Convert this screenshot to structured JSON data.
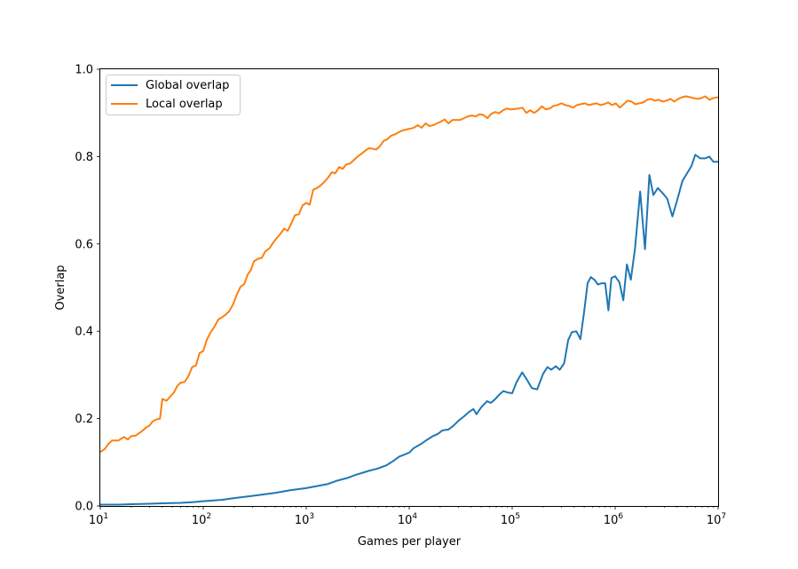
{
  "chart_data": {
    "type": "line",
    "title": "",
    "xlabel": "Games per player",
    "ylabel": "Overlap",
    "xscale": "log",
    "xlim": [
      10,
      10000000
    ],
    "ylim": [
      0.0,
      1.0
    ],
    "grid": false,
    "legend_position": "top-left",
    "x_ticks": [
      {
        "value": 10,
        "base": "10",
        "exp": "1"
      },
      {
        "value": 100,
        "base": "10",
        "exp": "2"
      },
      {
        "value": 1000,
        "base": "10",
        "exp": "3"
      },
      {
        "value": 10000,
        "base": "10",
        "exp": "4"
      },
      {
        "value": 100000,
        "base": "10",
        "exp": "5"
      },
      {
        "value": 1000000,
        "base": "10",
        "exp": "6"
      },
      {
        "value": 10000000,
        "base": "10",
        "exp": "7"
      }
    ],
    "y_ticks": [
      {
        "value": 0.0,
        "label": "0.0"
      },
      {
        "value": 0.2,
        "label": "0.2"
      },
      {
        "value": 0.4,
        "label": "0.4"
      },
      {
        "value": 0.6,
        "label": "0.6"
      },
      {
        "value": 0.8,
        "label": "0.8"
      },
      {
        "value": 1.0,
        "label": "1.0"
      }
    ],
    "series": [
      {
        "name": "Global overlap",
        "color": "#1f77b4",
        "points": [
          [
            10,
            0.003
          ],
          [
            15,
            0.003
          ],
          [
            20,
            0.004
          ],
          [
            30,
            0.005
          ],
          [
            40,
            0.006
          ],
          [
            60,
            0.007
          ],
          [
            80,
            0.009
          ],
          [
            100,
            0.011
          ],
          [
            150,
            0.014
          ],
          [
            200,
            0.018
          ],
          [
            300,
            0.023
          ],
          [
            400,
            0.027
          ],
          [
            500,
            0.03
          ],
          [
            700,
            0.036
          ],
          [
            1000,
            0.041
          ],
          [
            1300,
            0.046
          ],
          [
            1600,
            0.05
          ],
          [
            2000,
            0.058
          ],
          [
            2500,
            0.064
          ],
          [
            3000,
            0.071
          ],
          [
            4000,
            0.08
          ],
          [
            5000,
            0.086
          ],
          [
            6000,
            0.093
          ],
          [
            7000,
            0.103
          ],
          [
            8000,
            0.113
          ],
          [
            10000,
            0.122
          ],
          [
            11000,
            0.132
          ],
          [
            13000,
            0.142
          ],
          [
            15000,
            0.152
          ],
          [
            17000,
            0.16
          ],
          [
            19000,
            0.165
          ],
          [
            21000,
            0.173
          ],
          [
            24000,
            0.175
          ],
          [
            27000,
            0.184
          ],
          [
            30000,
            0.195
          ],
          [
            34000,
            0.205
          ],
          [
            38000,
            0.215
          ],
          [
            42000,
            0.222
          ],
          [
            45000,
            0.21
          ],
          [
            50000,
            0.226
          ],
          [
            57000,
            0.24
          ],
          [
            62000,
            0.236
          ],
          [
            68000,
            0.244
          ],
          [
            75000,
            0.255
          ],
          [
            82000,
            0.263
          ],
          [
            90000,
            0.26
          ],
          [
            100000,
            0.258
          ],
          [
            110000,
            0.283
          ],
          [
            125000,
            0.306
          ],
          [
            140000,
            0.288
          ],
          [
            155000,
            0.27
          ],
          [
            175000,
            0.267
          ],
          [
            200000,
            0.303
          ],
          [
            220000,
            0.318
          ],
          [
            240000,
            0.312
          ],
          [
            265000,
            0.32
          ],
          [
            290000,
            0.312
          ],
          [
            320000,
            0.327
          ],
          [
            350000,
            0.38
          ],
          [
            380000,
            0.398
          ],
          [
            420000,
            0.4
          ],
          [
            460000,
            0.382
          ],
          [
            500000,
            0.445
          ],
          [
            540000,
            0.51
          ],
          [
            580000,
            0.524
          ],
          [
            630000,
            0.518
          ],
          [
            680000,
            0.507
          ],
          [
            740000,
            0.51
          ],
          [
            800000,
            0.51
          ],
          [
            860000,
            0.448
          ],
          [
            920000,
            0.522
          ],
          [
            1000000,
            0.526
          ],
          [
            1100000,
            0.512
          ],
          [
            1200000,
            0.471
          ],
          [
            1300000,
            0.553
          ],
          [
            1420000,
            0.518
          ],
          [
            1560000,
            0.59
          ],
          [
            1750000,
            0.72
          ],
          [
            1950000,
            0.588
          ],
          [
            2150000,
            0.758
          ],
          [
            2350000,
            0.712
          ],
          [
            2600000,
            0.728
          ],
          [
            2900000,
            0.716
          ],
          [
            3200000,
            0.704
          ],
          [
            3600000,
            0.663
          ],
          [
            4000000,
            0.7
          ],
          [
            4500000,
            0.744
          ],
          [
            5000000,
            0.762
          ],
          [
            5500000,
            0.778
          ],
          [
            6000000,
            0.804
          ],
          [
            6700000,
            0.796
          ],
          [
            7500000,
            0.796
          ],
          [
            8200000,
            0.8
          ],
          [
            9000000,
            0.788
          ],
          [
            10000000,
            0.788
          ]
        ]
      },
      {
        "name": "Local overlap",
        "color": "#ff7f0e",
        "points": [
          [
            10,
            0.124
          ],
          [
            11,
            0.13
          ],
          [
            12,
            0.142
          ],
          [
            13,
            0.15
          ],
          [
            15,
            0.15
          ],
          [
            17,
            0.158
          ],
          [
            18.5,
            0.152
          ],
          [
            20,
            0.16
          ],
          [
            22,
            0.161
          ],
          [
            25,
            0.17
          ],
          [
            28,
            0.18
          ],
          [
            30,
            0.184
          ],
          [
            32,
            0.193
          ],
          [
            35,
            0.198
          ],
          [
            38,
            0.2
          ],
          [
            40,
            0.245
          ],
          [
            44,
            0.241
          ],
          [
            48,
            0.251
          ],
          [
            52,
            0.26
          ],
          [
            56,
            0.275
          ],
          [
            60,
            0.282
          ],
          [
            66,
            0.284
          ],
          [
            72,
            0.298
          ],
          [
            78,
            0.318
          ],
          [
            85,
            0.322
          ],
          [
            92,
            0.35
          ],
          [
            100,
            0.355
          ],
          [
            108,
            0.38
          ],
          [
            118,
            0.398
          ],
          [
            128,
            0.41
          ],
          [
            140,
            0.427
          ],
          [
            152,
            0.432
          ],
          [
            165,
            0.438
          ],
          [
            180,
            0.447
          ],
          [
            195,
            0.462
          ],
          [
            210,
            0.482
          ],
          [
            230,
            0.502
          ],
          [
            250,
            0.508
          ],
          [
            270,
            0.53
          ],
          [
            290,
            0.54
          ],
          [
            310,
            0.56
          ],
          [
            340,
            0.566
          ],
          [
            370,
            0.568
          ],
          [
            400,
            0.583
          ],
          [
            440,
            0.59
          ],
          [
            480,
            0.604
          ],
          [
            520,
            0.614
          ],
          [
            560,
            0.623
          ],
          [
            610,
            0.635
          ],
          [
            660,
            0.63
          ],
          [
            720,
            0.648
          ],
          [
            780,
            0.666
          ],
          [
            850,
            0.668
          ],
          [
            920,
            0.688
          ],
          [
            1000,
            0.694
          ],
          [
            1080,
            0.69
          ],
          [
            1170,
            0.724
          ],
          [
            1270,
            0.728
          ],
          [
            1380,
            0.734
          ],
          [
            1500,
            0.742
          ],
          [
            1630,
            0.752
          ],
          [
            1770,
            0.764
          ],
          [
            1920,
            0.762
          ],
          [
            2080,
            0.776
          ],
          [
            2260,
            0.772
          ],
          [
            2450,
            0.782
          ],
          [
            2660,
            0.784
          ],
          [
            2900,
            0.792
          ],
          [
            3150,
            0.8
          ],
          [
            3420,
            0.806
          ],
          [
            3720,
            0.813
          ],
          [
            4050,
            0.819
          ],
          [
            4400,
            0.818
          ],
          [
            4780,
            0.816
          ],
          [
            5200,
            0.824
          ],
          [
            5650,
            0.836
          ],
          [
            6150,
            0.84
          ],
          [
            6700,
            0.848
          ],
          [
            7300,
            0.851
          ],
          [
            7950,
            0.856
          ],
          [
            8650,
            0.86
          ],
          [
            9400,
            0.862
          ],
          [
            10200,
            0.864
          ],
          [
            11100,
            0.866
          ],
          [
            12100,
            0.872
          ],
          [
            13200,
            0.866
          ],
          [
            14400,
            0.876
          ],
          [
            15700,
            0.87
          ],
          [
            17100,
            0.872
          ],
          [
            18600,
            0.876
          ],
          [
            20300,
            0.88
          ],
          [
            22100,
            0.885
          ],
          [
            24100,
            0.876
          ],
          [
            26300,
            0.884
          ],
          [
            28700,
            0.884
          ],
          [
            31300,
            0.884
          ],
          [
            34100,
            0.888
          ],
          [
            37200,
            0.892
          ],
          [
            40600,
            0.894
          ],
          [
            44300,
            0.892
          ],
          [
            48300,
            0.897
          ],
          [
            52700,
            0.895
          ],
          [
            57500,
            0.888
          ],
          [
            62700,
            0.898
          ],
          [
            68400,
            0.902
          ],
          [
            74600,
            0.899
          ],
          [
            81400,
            0.906
          ],
          [
            88800,
            0.91
          ],
          [
            96900,
            0.908
          ],
          [
            105700,
            0.909
          ],
          [
            115300,
            0.91
          ],
          [
            125800,
            0.912
          ],
          [
            137200,
            0.9
          ],
          [
            149700,
            0.906
          ],
          [
            163300,
            0.9
          ],
          [
            178200,
            0.906
          ],
          [
            194400,
            0.915
          ],
          [
            212100,
            0.908
          ],
          [
            231400,
            0.91
          ],
          [
            252400,
            0.916
          ],
          [
            275400,
            0.918
          ],
          [
            300500,
            0.922
          ],
          [
            327800,
            0.918
          ],
          [
            357600,
            0.916
          ],
          [
            390200,
            0.912
          ],
          [
            425700,
            0.918
          ],
          [
            464400,
            0.92
          ],
          [
            506600,
            0.922
          ],
          [
            552700,
            0.918
          ],
          [
            603000,
            0.92
          ],
          [
            657900,
            0.922
          ],
          [
            717700,
            0.918
          ],
          [
            783000,
            0.92
          ],
          [
            854200,
            0.924
          ],
          [
            931900,
            0.918
          ],
          [
            1016700,
            0.922
          ],
          [
            1109200,
            0.912
          ],
          [
            1210100,
            0.92
          ],
          [
            1320200,
            0.928
          ],
          [
            1440300,
            0.926
          ],
          [
            1571300,
            0.92
          ],
          [
            1714300,
            0.922
          ],
          [
            1870300,
            0.924
          ],
          [
            2040400,
            0.93
          ],
          [
            2226000,
            0.932
          ],
          [
            2428500,
            0.928
          ],
          [
            2649400,
            0.93
          ],
          [
            2890400,
            0.926
          ],
          [
            3153400,
            0.928
          ],
          [
            3440300,
            0.932
          ],
          [
            3753200,
            0.926
          ],
          [
            4094700,
            0.932
          ],
          [
            4467200,
            0.936
          ],
          [
            4873600,
            0.938
          ],
          [
            5317000,
            0.936
          ],
          [
            5800700,
            0.934
          ],
          [
            6328400,
            0.932
          ],
          [
            6904100,
            0.934
          ],
          [
            7532200,
            0.938
          ],
          [
            8217400,
            0.93
          ],
          [
            8965000,
            0.934
          ],
          [
            10000000,
            0.936
          ]
        ]
      }
    ]
  }
}
